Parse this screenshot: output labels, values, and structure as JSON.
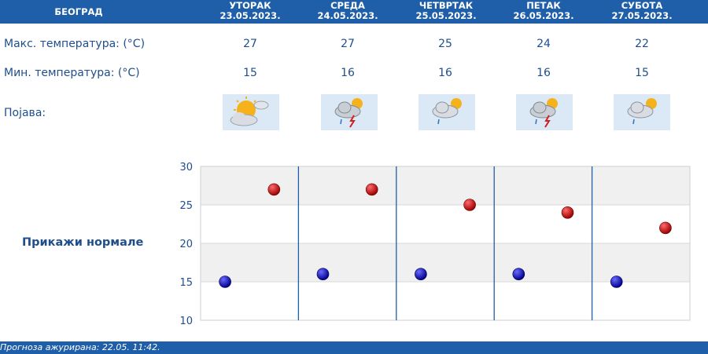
{
  "header": {
    "city": "БЕОГРАД",
    "days": [
      {
        "name": "УТОРАК",
        "date": "23.05.2023."
      },
      {
        "name": "СРЕДА",
        "date": "24.05.2023."
      },
      {
        "name": "ЧЕТВРТАК",
        "date": "25.05.2023."
      },
      {
        "name": "ПЕТАК",
        "date": "26.05.2023."
      },
      {
        "name": "СУБОТА",
        "date": "27.05.2023."
      }
    ]
  },
  "rows": {
    "max_label": "Макс. температура: (°C)",
    "min_label": "Мин. температура: (°C)",
    "phenomenon_label": "Појава:",
    "max_values": [
      "27",
      "27",
      "25",
      "24",
      "22"
    ],
    "min_values": [
      "15",
      "16",
      "16",
      "16",
      "15"
    ],
    "icons": [
      "sun-cloud-icon",
      "thunderstorm-icon",
      "cloud-rain-icon",
      "thunderstorm-icon",
      "cloud-rain-icon"
    ]
  },
  "show_normals": "Прикажи нормале",
  "footer": "Прогноза ажурирана:  22.05.  11:42.",
  "colors": {
    "header_bg": "#1f5ea8",
    "text": "#1f4e8c",
    "max_dot": "#cc0000",
    "min_dot": "#1010b0",
    "band": "#f0f0f0",
    "divider": "#1f5ea8"
  },
  "chart_data": {
    "type": "scatter",
    "categories": [
      "23.05.2023.",
      "24.05.2023.",
      "25.05.2023.",
      "26.05.2023.",
      "27.05.2023."
    ],
    "series": [
      {
        "values": [
          27,
          27,
          25,
          24,
          22
        ]
      },
      {
        "values": [
          15,
          16,
          16,
          16,
          15
        ]
      }
    ],
    "ylim": [
      10,
      30
    ],
    "yticks": [
      "30",
      "25",
      "20",
      "15",
      "10"
    ]
  }
}
